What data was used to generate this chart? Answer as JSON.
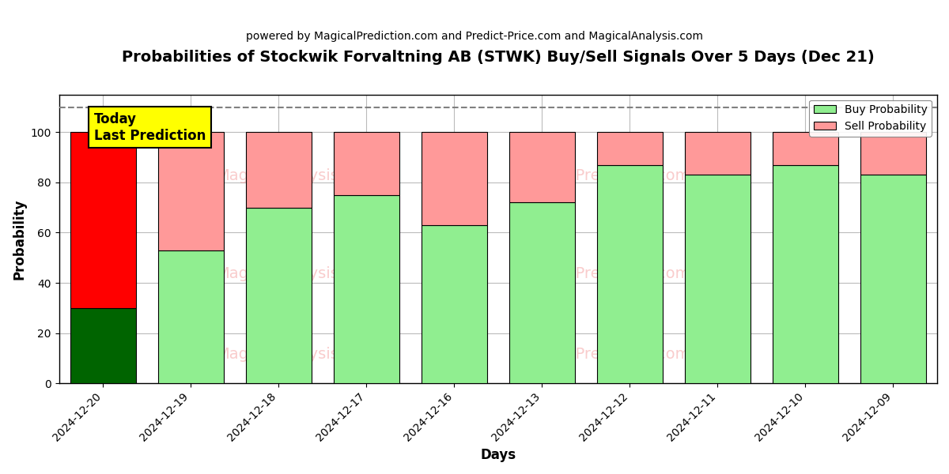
{
  "title": "Probabilities of Stockwik Forvaltning AB (STWK) Buy/Sell Signals Over 5 Days (Dec 21)",
  "subtitle": "powered by MagicalPrediction.com and Predict-Price.com and MagicalAnalysis.com",
  "xlabel": "Days",
  "ylabel": "Probability",
  "dates": [
    "2024-12-20",
    "2024-12-19",
    "2024-12-18",
    "2024-12-17",
    "2024-12-16",
    "2024-12-13",
    "2024-12-12",
    "2024-12-11",
    "2024-12-10",
    "2024-12-09"
  ],
  "buy_values": [
    30,
    53,
    70,
    75,
    63,
    72,
    87,
    83,
    87,
    83
  ],
  "sell_values": [
    70,
    47,
    30,
    25,
    37,
    28,
    13,
    17,
    13,
    17
  ],
  "buy_colors": [
    "#006400",
    "#90EE90",
    "#90EE90",
    "#90EE90",
    "#90EE90",
    "#90EE90",
    "#90EE90",
    "#90EE90",
    "#90EE90",
    "#90EE90"
  ],
  "sell_colors": [
    "#FF0000",
    "#FF9999",
    "#FF9999",
    "#FF9999",
    "#FF9999",
    "#FF9999",
    "#FF9999",
    "#FF9999",
    "#FF9999",
    "#FF9999"
  ],
  "legend_buy_color": "#90EE90",
  "legend_sell_color": "#FF9999",
  "today_box_color": "#FFFF00",
  "today_label": "Today\nLast Prediction",
  "dashed_line_y": 110,
  "ylim": [
    0,
    115
  ],
  "background_color": "#ffffff",
  "grid_color": "#bbbbbb",
  "title_fontsize": 14,
  "subtitle_fontsize": 10,
  "bar_width": 0.75
}
